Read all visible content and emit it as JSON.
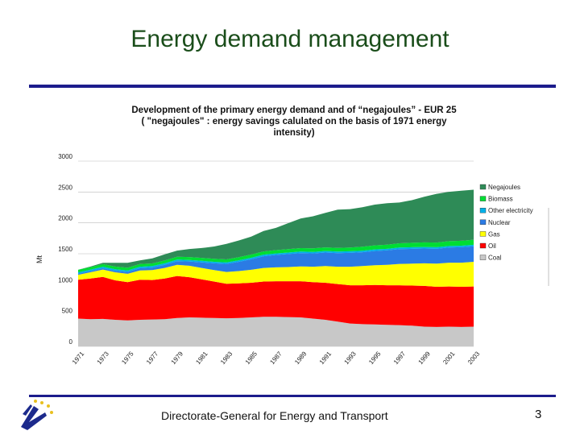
{
  "slide": {
    "title": "Energy demand management",
    "footer": "Directorate-General for Energy and Transport",
    "page_number": "3"
  },
  "colors": {
    "title": "#1a4d1a",
    "rule": "#1c1c8c"
  },
  "chart_data": {
    "type": "area",
    "title_lines": [
      "Development of the primary energy demand  and of “negajoules” - EUR 25",
      "( \"negajoules\" : energy savings calulated on the basis of 1971 energy",
      "intensity)"
    ],
    "ylabel": "Mt",
    "ylim": [
      0,
      3000
    ],
    "yticks": [
      "0",
      "500",
      "1000",
      "1500",
      "2000",
      "2500",
      "3000"
    ],
    "xlim": [
      1971,
      2003
    ],
    "xticks": [
      "1971",
      "1973",
      "1975",
      "1977",
      "1979",
      "1981",
      "1983",
      "1985",
      "1987",
      "1989",
      "1991",
      "1993",
      "1995",
      "1997",
      "1999",
      "2001",
      "2003"
    ],
    "legend_position": "right",
    "x": [
      1971,
      1972,
      1973,
      1974,
      1975,
      1976,
      1977,
      1978,
      1979,
      1980,
      1981,
      1982,
      1983,
      1984,
      1985,
      1986,
      1987,
      1988,
      1989,
      1990,
      1991,
      1992,
      1993,
      1994,
      1995,
      1996,
      1997,
      1998,
      1999,
      2000,
      2001,
      2002,
      2003
    ],
    "series": [
      {
        "name": "Coal",
        "color": "#c8c8c8",
        "values": [
          450,
          440,
          445,
          430,
          420,
          430,
          435,
          440,
          460,
          470,
          465,
          460,
          455,
          460,
          470,
          480,
          480,
          475,
          470,
          450,
          430,
          400,
          370,
          360,
          355,
          350,
          345,
          335,
          320,
          315,
          320,
          315,
          320
        ]
      },
      {
        "name": "Oil",
        "color": "#ff0000",
        "values": [
          630,
          660,
          680,
          640,
          620,
          650,
          640,
          660,
          680,
          650,
          620,
          590,
          560,
          560,
          560,
          570,
          575,
          580,
          585,
          590,
          600,
          610,
          620,
          630,
          640,
          640,
          645,
          650,
          660,
          650,
          650,
          650,
          650
        ]
      },
      {
        "name": "Gas",
        "color": "#ffff00",
        "values": [
          80,
          100,
          120,
          130,
          135,
          150,
          160,
          170,
          180,
          185,
          185,
          185,
          190,
          200,
          210,
          220,
          225,
          230,
          240,
          250,
          270,
          280,
          300,
          310,
          320,
          330,
          345,
          355,
          365,
          375,
          385,
          390,
          400
        ]
      },
      {
        "name": "Nuclear",
        "color": "#2b7be4",
        "values": [
          15,
          18,
          20,
          25,
          30,
          35,
          40,
          50,
          60,
          70,
          90,
          110,
          130,
          150,
          170,
          190,
          200,
          210,
          215,
          215,
          220,
          220,
          225,
          225,
          230,
          235,
          240,
          240,
          240,
          240,
          245,
          250,
          250
        ]
      },
      {
        "name": "Other electricity",
        "color": "#00b0e8",
        "values": [
          25,
          25,
          25,
          25,
          25,
          25,
          25,
          25,
          25,
          25,
          25,
          25,
          25,
          25,
          25,
          25,
          25,
          25,
          25,
          25,
          25,
          25,
          25,
          25,
          25,
          25,
          25,
          25,
          25,
          25,
          25,
          25,
          25
        ]
      },
      {
        "name": "Biomass",
        "color": "#00dd33",
        "values": [
          40,
          40,
          42,
          42,
          43,
          43,
          44,
          45,
          46,
          47,
          48,
          48,
          49,
          50,
          52,
          53,
          54,
          55,
          56,
          57,
          58,
          60,
          62,
          64,
          66,
          68,
          70,
          72,
          74,
          76,
          78,
          80,
          82
        ]
      },
      {
        "name": "Negajoules",
        "color": "#2e8b57",
        "values": [
          0,
          10,
          20,
          60,
          80,
          60,
          80,
          100,
          100,
          130,
          160,
          200,
          250,
          270,
          290,
          330,
          360,
          420,
          480,
          520,
          560,
          620,
          620,
          640,
          660,
          670,
          660,
          690,
          740,
          790,
          800,
          810,
          810
        ]
      }
    ]
  }
}
